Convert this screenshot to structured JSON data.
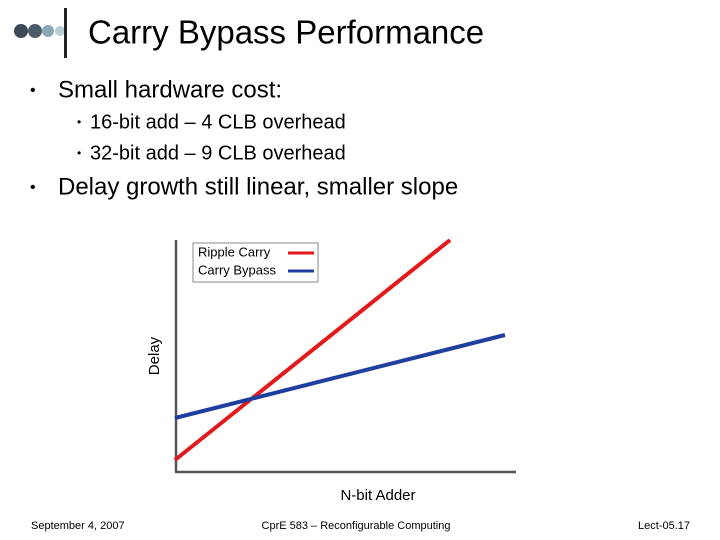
{
  "header": {
    "title": "Carry Bypass Performance"
  },
  "bullets": [
    {
      "text": "Small hardware cost:",
      "sub": [
        "16-bit add – 4 CLB overhead",
        "32-bit add – 9 CLB overhead"
      ]
    },
    {
      "text": "Delay growth still linear, smaller slope"
    }
  ],
  "figure": {
    "legend": [
      "Ripple Carry",
      "Carry Bypass"
    ],
    "y_label": "Delay",
    "x_label": "N-bit Adder"
  },
  "footer": {
    "date": "September 4, 2007",
    "course": "CprE 583 – Reconfigurable Computing",
    "page": "Lect-05.17"
  }
}
